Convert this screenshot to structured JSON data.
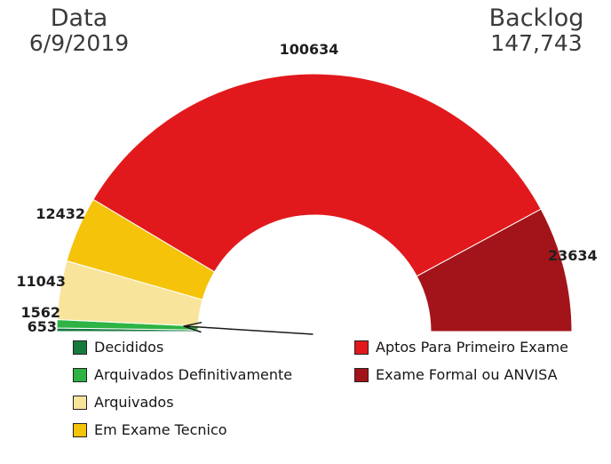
{
  "header": {
    "date_label": "Data",
    "date_value": "6/9/2019",
    "backlog_label": "Backlog",
    "backlog_value": "147,743"
  },
  "chart_data": {
    "type": "pie",
    "subtype": "half-donut-gauge",
    "title": "Backlog 147,743 - Data 6/9/2019",
    "legend_position": "bottom",
    "start_angle_deg": 180,
    "end_angle_deg": 0,
    "segments": [
      {
        "label": "Decididos",
        "value": 653,
        "value_label": "653",
        "color": "#177a3d"
      },
      {
        "label": "Arquivados Definitivamente",
        "value": 1562,
        "value_label": "1562",
        "color": "#2eb344"
      },
      {
        "label": "Arquivados",
        "value": 11043,
        "value_label": "11043",
        "color": "#f9e49c"
      },
      {
        "label": "Em Exame Tecnico",
        "value": 12432,
        "value_label": "12432",
        "color": "#f4c30a"
      },
      {
        "label": "Aptos Para Primeiro Exame",
        "value": 100634,
        "value_label": "100634",
        "color": "#e2191c"
      },
      {
        "label": "Exame Formal ou ANVISA",
        "value": 23634,
        "value_label": "23634",
        "color": "#a3141a"
      }
    ],
    "annotations": [
      {
        "type": "arrow",
        "points_to": "Decididos / Arquivados Definitivamente segments"
      }
    ]
  }
}
